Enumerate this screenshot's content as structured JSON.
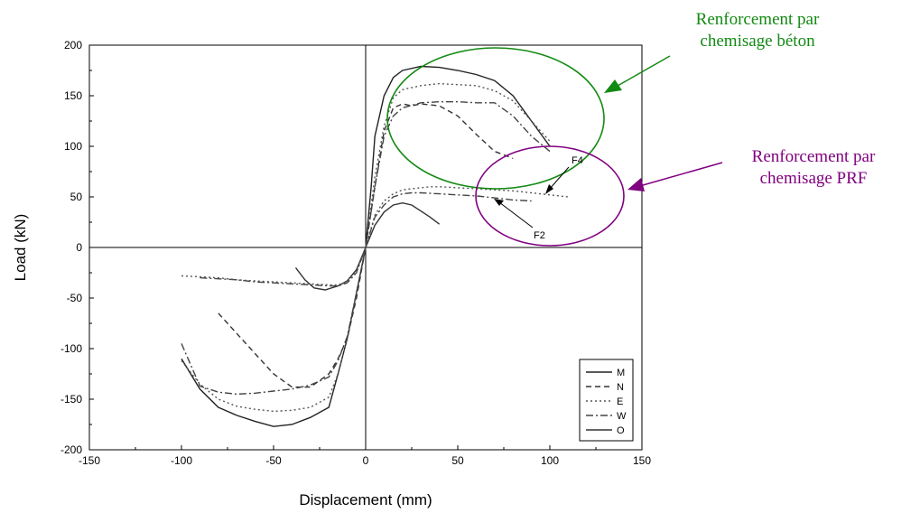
{
  "chart_data": {
    "type": "line",
    "xlabel": "Displacement (mm)",
    "ylabel": "Load (kN)",
    "xlim": [
      -150,
      150
    ],
    "ylim": [
      -200,
      200
    ],
    "xticks": [
      -150,
      -100,
      -50,
      0,
      50,
      100,
      150
    ],
    "yticks": [
      -200,
      -150,
      -100,
      -50,
      0,
      50,
      100,
      150,
      200
    ],
    "grid": false,
    "zero_lines": true,
    "legend_placement": "bottom-right",
    "series": [
      {
        "name": "M",
        "style": "solid",
        "color": "#222222",
        "x": [
          -100,
          -90,
          -80,
          -70,
          -60,
          -50,
          -40,
          -30,
          -20,
          -15,
          -10,
          -5,
          0,
          3,
          5,
          10,
          15,
          20,
          30,
          40,
          50,
          60,
          70,
          80,
          90,
          100
        ],
        "y": [
          -110,
          -140,
          -158,
          -166,
          -172,
          -177,
          -175,
          -168,
          -158,
          -125,
          -90,
          -45,
          0,
          60,
          110,
          150,
          168,
          175,
          179,
          178,
          175,
          171,
          165,
          150,
          125,
          100
        ]
      },
      {
        "name": "N",
        "style": "dashed",
        "color": "#333333",
        "x": [
          -80,
          -70,
          -60,
          -50,
          -40,
          -30,
          -20,
          -15,
          -10,
          -5,
          0,
          5,
          10,
          15,
          20,
          25,
          30,
          40,
          50,
          60,
          70,
          80
        ],
        "y": [
          -65,
          -85,
          -105,
          -125,
          -138,
          -138,
          -125,
          -110,
          -90,
          -50,
          0,
          60,
          115,
          138,
          142,
          140,
          142,
          140,
          130,
          112,
          95,
          88
        ]
      },
      {
        "name": "E",
        "style": "dotted",
        "color": "#555555",
        "x": [
          -100,
          -90,
          -80,
          -70,
          -60,
          -50,
          -40,
          -30,
          -20,
          -15,
          -10,
          -5,
          0,
          5,
          10,
          15,
          20,
          30,
          40,
          50,
          60,
          70,
          80,
          90,
          100
        ],
        "y": [
          -112,
          -135,
          -150,
          -157,
          -160,
          -162,
          -161,
          -158,
          -148,
          -125,
          -90,
          -45,
          0,
          70,
          120,
          148,
          156,
          160,
          162,
          161,
          160,
          155,
          145,
          125,
          105
        ]
      },
      {
        "name": "W",
        "style": "dashdot",
        "color": "#444444",
        "x": [
          -100,
          -90,
          -80,
          -70,
          -60,
          -50,
          -40,
          -30,
          -20,
          -15,
          -10,
          -5,
          0,
          5,
          10,
          15,
          20,
          30,
          40,
          50,
          60,
          70,
          80,
          90,
          100
        ],
        "y": [
          -95,
          -137,
          -143,
          -145,
          -144,
          -142,
          -140,
          -136,
          -128,
          -112,
          -88,
          -45,
          0,
          60,
          110,
          130,
          138,
          143,
          144,
          144,
          143,
          143,
          130,
          110,
          95
        ]
      },
      {
        "name": "O",
        "style": "solid",
        "color": "#333333",
        "x": [
          -38,
          -33,
          -28,
          -22,
          -15,
          -10,
          -5,
          0,
          5,
          10,
          15,
          20,
          25,
          30,
          35,
          40
        ],
        "y": [
          -20,
          -32,
          -40,
          -42,
          -38,
          -33,
          -22,
          0,
          22,
          35,
          42,
          44,
          42,
          36,
          30,
          23
        ]
      },
      {
        "name": "F2",
        "style": "dashdot",
        "color": "#444444",
        "x": [
          -90,
          -80,
          -70,
          -60,
          -50,
          -40,
          -30,
          -20,
          -15,
          -10,
          -5,
          0,
          5,
          10,
          15,
          20,
          25,
          30,
          40,
          50,
          60,
          70,
          80,
          90
        ],
        "y": [
          -30,
          -31,
          -32,
          -34,
          -35,
          -36,
          -37,
          -38,
          -38,
          -35,
          -25,
          0,
          30,
          42,
          50,
          53,
          54,
          54,
          53,
          52,
          51,
          49,
          47,
          46
        ]
      },
      {
        "name": "F4",
        "style": "dotted",
        "color": "#555555",
        "x": [
          -100,
          -90,
          -80,
          -70,
          -60,
          -50,
          -40,
          -30,
          -20,
          -15,
          -10,
          -5,
          0,
          5,
          10,
          15,
          20,
          25,
          30,
          35,
          40,
          50,
          60,
          70,
          80,
          90,
          100,
          110
        ],
        "y": [
          -28,
          -29,
          -30,
          -32,
          -33,
          -34,
          -35,
          -36,
          -37,
          -37,
          -34,
          -24,
          0,
          32,
          46,
          53,
          57,
          58,
          59,
          60,
          60,
          59,
          58,
          57,
          56,
          54,
          52,
          50
        ]
      }
    ],
    "legend": [
      "M",
      "N",
      "E",
      "W",
      "O"
    ],
    "annotations": [
      {
        "text": "F4",
        "x": 112,
        "y": 85
      },
      {
        "text": "F2",
        "x": 95,
        "y": 12
      }
    ]
  },
  "callouts": {
    "concrete": {
      "lines": [
        "Renforcement par",
        "chemisage béton"
      ],
      "color": "#138a13"
    },
    "frp": {
      "lines": [
        "Renforcement par",
        "chemisage PRF"
      ],
      "color": "#800080"
    }
  }
}
